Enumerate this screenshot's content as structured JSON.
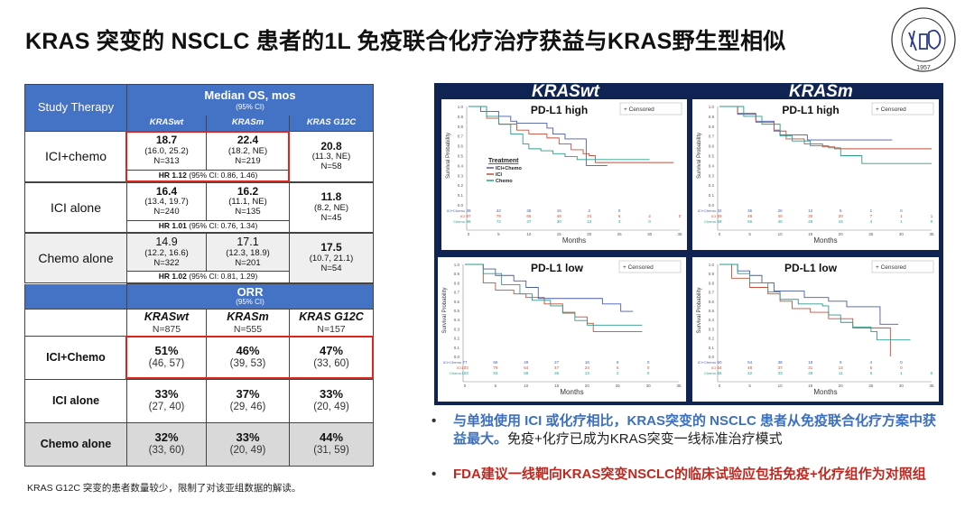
{
  "title": "KRAS 突变的 NSCLC 患者的1L 免疫联合化疗治疗获益与KRAS野生型相似",
  "logo": {
    "text": "SHANGHAI CHEST HOSPITAL",
    "year": "1957"
  },
  "os_table": {
    "header": {
      "col0": "Study Therapy",
      "title": "Median OS, mos",
      "ci": "(95% CI)",
      "cols": [
        "KRASwt",
        "KRASm",
        "KRAS G12C"
      ]
    },
    "rows": [
      {
        "label": "ICI+chemo",
        "cells": [
          {
            "v": "18.7",
            "ci": "(16.0, 25.2)",
            "n": "N=313"
          },
          {
            "v": "22.4",
            "ci": "(18.2, NE)",
            "n": "N=219"
          },
          {
            "v": "20.8",
            "ci": "(11.3, NE)",
            "n": "N=58"
          }
        ],
        "hr": "HR 1.12",
        "hr_ci": " (95% CI: 0.86, 1.46)"
      },
      {
        "label": "ICI alone",
        "cells": [
          {
            "v": "16.4",
            "ci": "(13.4, 19.7)",
            "n": "N=240"
          },
          {
            "v": "16.2",
            "ci": "(11.1, NE)",
            "n": "N=135"
          },
          {
            "v": "11.8",
            "ci": "(8.2, NE)",
            "n": "N=45"
          }
        ],
        "hr": "HR 1.01",
        "hr_ci": " (95% CI: 0.76, 1.34)"
      },
      {
        "label": "Chemo alone",
        "cells": [
          {
            "v": "14.9",
            "ci": "(12.2, 16.6)",
            "n": "N=322"
          },
          {
            "v": "17.1",
            "ci": "(12.3, 18.9)",
            "n": "N=201"
          },
          {
            "v": "17.5",
            "ci": "(10.7, 21.1)",
            "n": "N=54"
          }
        ],
        "hr": "HR 1.02",
        "hr_ci": " (95% CI: 0.81, 1.29)"
      }
    ]
  },
  "orr_table": {
    "header": {
      "title": "ORR",
      "ci": "(95% CI)"
    },
    "cols": [
      {
        "name": "KRASwt",
        "n": "N=875"
      },
      {
        "name": "KRASm",
        "n": "N=555"
      },
      {
        "name": "KRAS G12C",
        "n": "N=157"
      }
    ],
    "rows": [
      {
        "label": "ICI+Chemo",
        "cells": [
          {
            "v": "51%",
            "ci": "(46, 57)"
          },
          {
            "v": "46%",
            "ci": "(39, 53)"
          },
          {
            "v": "47%",
            "ci": "(33, 60)"
          }
        ]
      },
      {
        "label": "ICI alone",
        "cells": [
          {
            "v": "33%",
            "ci": "(27, 40)"
          },
          {
            "v": "37%",
            "ci": "(29, 46)"
          },
          {
            "v": "33%",
            "ci": "(20, 49)"
          }
        ]
      },
      {
        "label": "Chemo alone",
        "cells": [
          {
            "v": "32%",
            "ci": "(33, 60)"
          },
          {
            "v": "33%",
            "ci": "(20, 49)"
          },
          {
            "v": "44%",
            "ci": "(31, 59)"
          }
        ]
      }
    ]
  },
  "footnote": "KRAS G12C 突变的患者数量较少，限制了对该亚组数据的解读。",
  "panel": {
    "left_header": "KRASwt",
    "right_header": "KRASm"
  },
  "colors": {
    "ICI+Chemo": "#4a5aa8",
    "ICI": "#c0503c",
    "Chemo": "#2e9a8c",
    "header_blue": "#4472c4",
    "panel_navy": "#0f2453",
    "highlight_red": "#e0241b"
  },
  "chart_data": [
    {
      "type": "line",
      "subtitle": "PD-L1 high",
      "group": "KRASwt",
      "xlabel": "Months",
      "ylabel": "Survival Probability",
      "xlim": [
        0,
        35
      ],
      "ylim": [
        0,
        1
      ],
      "legend": "Censored",
      "treatment_legend": {
        "title": "Treatment",
        "items": [
          "ICI+Chemo",
          "ICI",
          "Chemo"
        ]
      },
      "series": [
        {
          "name": "ICI+Chemo",
          "points": [
            [
              0,
              1
            ],
            [
              2,
              0.95
            ],
            [
              5,
              0.9
            ],
            [
              7,
              0.85
            ],
            [
              8,
              0.83
            ],
            [
              12,
              0.83
            ],
            [
              13,
              0.78
            ],
            [
              14,
              0.72
            ],
            [
              16,
              0.67
            ],
            [
              19,
              0.67
            ],
            [
              19.5,
              0.4
            ],
            [
              23,
              0.4
            ]
          ],
          "at_risk": [
            "49",
            "42",
            "36",
            "15",
            "2",
            "0"
          ]
        },
        {
          "name": "ICI",
          "points": [
            [
              0,
              1
            ],
            [
              3,
              0.88
            ],
            [
              5,
              0.82
            ],
            [
              8,
              0.76
            ],
            [
              10,
              0.72
            ],
            [
              13,
              0.68
            ],
            [
              15,
              0.62
            ],
            [
              17,
              0.56
            ],
            [
              19,
              0.52
            ],
            [
              20,
              0.5
            ],
            [
              21,
              0.43
            ],
            [
              34,
              0.43
            ]
          ],
          "at_risk": [
            "97",
            "79",
            "65",
            "48",
            "24",
            "5",
            "2",
            "0"
          ]
        },
        {
          "name": "Chemo",
          "points": [
            [
              0,
              1
            ],
            [
              3,
              0.9
            ],
            [
              5,
              0.82
            ],
            [
              7,
              0.72
            ],
            [
              9,
              0.62
            ],
            [
              10,
              0.57
            ],
            [
              12,
              0.55
            ],
            [
              14,
              0.52
            ],
            [
              16,
              0.49
            ],
            [
              18,
              0.46
            ],
            [
              30,
              0.46
            ]
          ],
          "at_risk": [
            "96",
            "72",
            "47",
            "30",
            "13",
            "3",
            "0"
          ]
        }
      ]
    },
    {
      "type": "line",
      "subtitle": "PD-L1 high",
      "group": "KRASm",
      "xlabel": "Months",
      "ylabel": "Survival Probability",
      "xlim": [
        0,
        35
      ],
      "ylim": [
        0,
        1
      ],
      "legend": "Censored",
      "series": [
        {
          "name": "ICI+Chemo",
          "points": [
            [
              0,
              1
            ],
            [
              3,
              0.92
            ],
            [
              6,
              0.85
            ],
            [
              9,
              0.76
            ],
            [
              10,
              0.71
            ],
            [
              14,
              0.71
            ],
            [
              14.5,
              0.66
            ],
            [
              28.5,
              0.66
            ]
          ],
          "at_risk": [
            "42",
            "36",
            "26",
            "12",
            "5",
            "1",
            "0"
          ]
        },
        {
          "name": "ICI",
          "points": [
            [
              0,
              1
            ],
            [
              3,
              0.93
            ],
            [
              6,
              0.84
            ],
            [
              9,
              0.75
            ],
            [
              11,
              0.67
            ],
            [
              14,
              0.62
            ],
            [
              17,
              0.59
            ],
            [
              19,
              0.57
            ],
            [
              35,
              0.57
            ]
          ],
          "at_risk": [
            "59",
            "48",
            "40",
            "30",
            "20",
            "7",
            "1",
            "1"
          ]
        },
        {
          "name": "Chemo",
          "points": [
            [
              0,
              1
            ],
            [
              4,
              0.9
            ],
            [
              7,
              0.82
            ],
            [
              10,
              0.7
            ],
            [
              12,
              0.65
            ],
            [
              15,
              0.6
            ],
            [
              18,
              0.58
            ],
            [
              20,
              0.5
            ],
            [
              23,
              0.5
            ],
            [
              23.5,
              0.42
            ],
            [
              35,
              0.42
            ]
          ],
          "at_risk": [
            "69",
            "56",
            "40",
            "29",
            "15",
            "4",
            "1",
            "0"
          ]
        }
      ]
    },
    {
      "type": "line",
      "subtitle": "PD-L1 low",
      "group": "KRASwt",
      "xlabel": "Months",
      "ylabel": "Survival Probability",
      "xlim": [
        0,
        35
      ],
      "ylim": [
        0,
        1
      ],
      "legend": "Censored",
      "series": [
        {
          "name": "ICI+Chemo",
          "points": [
            [
              0,
              1
            ],
            [
              3,
              0.95
            ],
            [
              5,
              0.88
            ],
            [
              8,
              0.82
            ],
            [
              10,
              0.75
            ],
            [
              12,
              0.63
            ],
            [
              22,
              0.63
            ],
            [
              22.5,
              0.57
            ],
            [
              25,
              0.57
            ],
            [
              25.5,
              0.49
            ],
            [
              27.5,
              0.49
            ]
          ],
          "at_risk": [
            "77",
            "66",
            "49",
            "27",
            "16",
            "8",
            "0"
          ]
        },
        {
          "name": "ICI",
          "points": [
            [
              0,
              1
            ],
            [
              3,
              0.8
            ],
            [
              5,
              0.72
            ],
            [
              8,
              0.68
            ],
            [
              10,
              0.64
            ],
            [
              13,
              0.57
            ],
            [
              16,
              0.48
            ],
            [
              18,
              0.43
            ],
            [
              20,
              0.36
            ],
            [
              21,
              0.27
            ],
            [
              29,
              0.27
            ]
          ],
          "at_risk": [
            "103",
            "79",
            "64",
            "47",
            "24",
            "6",
            "0"
          ]
        },
        {
          "name": "Chemo",
          "points": [
            [
              0,
              1
            ],
            [
              3,
              0.9
            ],
            [
              6,
              0.78
            ],
            [
              9,
              0.68
            ],
            [
              11,
              0.61
            ],
            [
              14,
              0.55
            ],
            [
              16,
              0.47
            ],
            [
              18,
              0.39
            ],
            [
              20,
              0.34
            ],
            [
              29,
              0.34
            ]
          ],
          "at_risk": [
            "103",
            "83",
            "58",
            "36",
            "13",
            "2",
            "0"
          ]
        }
      ]
    },
    {
      "type": "line",
      "subtitle": "PD-L1 low",
      "group": "KRASm",
      "xlabel": "Months",
      "ylabel": "Survival Probability",
      "xlim": [
        0,
        35
      ],
      "ylim": [
        0,
        1
      ],
      "legend": "Censored",
      "series": [
        {
          "name": "ICI+Chemo",
          "points": [
            [
              0,
              1
            ],
            [
              3,
              0.93
            ],
            [
              5,
              0.88
            ],
            [
              7,
              0.8
            ],
            [
              9,
              0.71
            ],
            [
              12,
              0.71
            ],
            [
              14,
              0.64
            ],
            [
              18,
              0.6
            ],
            [
              21,
              0.54
            ],
            [
              26,
              0.54
            ],
            [
              26.5,
              0.35
            ],
            [
              29.5,
              0.35
            ]
          ],
          "at_risk": [
            "60",
            "54",
            "38",
            "19",
            "9",
            "4",
            "0"
          ]
        },
        {
          "name": "ICI",
          "points": [
            [
              0,
              1
            ],
            [
              2,
              0.85
            ],
            [
              5,
              0.75
            ],
            [
              8,
              0.68
            ],
            [
              10,
              0.6
            ],
            [
              12,
              0.52
            ],
            [
              15,
              0.48
            ],
            [
              18,
              0.41
            ],
            [
              22,
              0.31
            ],
            [
              28,
              0.31
            ],
            [
              28.2,
              0
            ]
          ],
          "at_risk": [
            "64",
            "48",
            "37",
            "31",
            "14",
            "5",
            "0"
          ]
        },
        {
          "name": "Chemo",
          "points": [
            [
              0,
              1
            ],
            [
              3,
              0.9
            ],
            [
              5,
              0.8
            ],
            [
              8,
              0.7
            ],
            [
              10,
              0.62
            ],
            [
              13,
              0.57
            ],
            [
              17,
              0.55
            ],
            [
              18,
              0.45
            ],
            [
              20,
              0.37
            ],
            [
              22,
              0.32
            ],
            [
              25,
              0.27
            ],
            [
              26,
              0.18
            ],
            [
              31.5,
              0.18
            ]
          ],
          "at_risk": [
            "55",
            "42",
            "33",
            "28",
            "11",
            "5",
            "1",
            "0"
          ]
        }
      ]
    }
  ],
  "bullets": [
    {
      "blue": "与单独使用 ICI 或化疗相比，KRAS突变的 NSCLC 患者从免疫联合化疗方案中获益最大。",
      "black": "免疫+化疗已成为KRAS突变一线标准治疗模式"
    },
    {
      "red": "FDA建议一线靶向KRAS突变NSCLC的临床试验应包括免疫+化疗组作为对照组"
    }
  ]
}
